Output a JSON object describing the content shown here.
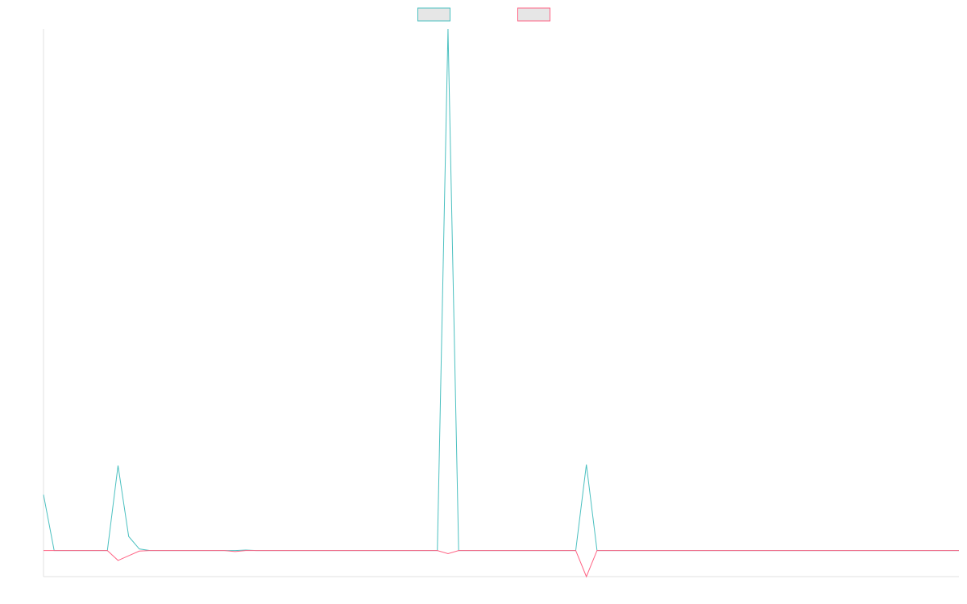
{
  "chart_data": {
    "type": "line",
    "title": "",
    "xlabel": "",
    "ylabel": "",
    "grid": false,
    "legend_position": "top-center",
    "x": [
      0,
      1,
      2,
      3,
      4,
      5,
      6,
      7,
      8,
      9,
      10,
      11,
      12,
      13,
      14,
      15,
      16,
      17,
      18,
      19,
      20,
      21,
      22,
      23,
      24,
      25,
      26,
      27,
      28,
      29,
      30,
      31,
      32,
      33,
      34,
      35,
      36,
      37,
      38,
      39,
      40,
      41,
      42,
      43,
      44,
      45,
      46,
      47,
      48,
      49,
      50,
      51,
      52,
      53,
      54,
      55,
      56,
      57,
      58,
      59,
      60,
      61,
      62,
      63,
      64,
      65,
      66,
      67,
      68,
      69,
      70,
      71,
      72,
      73,
      74,
      75,
      76,
      77,
      78,
      79,
      80,
      81,
      82,
      83,
      84,
      85,
      86
    ],
    "ylim": [
      -0.05,
      1.0
    ],
    "series": [
      {
        "color": "#4bc0c0",
        "values": [
          0.107,
          0,
          0,
          0,
          0,
          0,
          0,
          0.163,
          0.027,
          0.003,
          0,
          0,
          0,
          0,
          0,
          0,
          0,
          0,
          0,
          0.001,
          0,
          0,
          0,
          0,
          0,
          0,
          0,
          0,
          0,
          0,
          0,
          0,
          0,
          0,
          0,
          0,
          0,
          0,
          1.0,
          0,
          0,
          0,
          0,
          0,
          0,
          0,
          0,
          0,
          0,
          0,
          0,
          0.165,
          0,
          0,
          0,
          0,
          0,
          0,
          0,
          0,
          0,
          0,
          0,
          0,
          0,
          0,
          0,
          0,
          0,
          0,
          0,
          0,
          0,
          0,
          0,
          0,
          0,
          0,
          0,
          0,
          0,
          0,
          0,
          0,
          0,
          0,
          0
        ]
      },
      {
        "color": "#ff6384",
        "values": [
          0,
          0,
          0,
          0,
          0,
          0,
          0,
          -0.019,
          -0.01,
          -0.001,
          0,
          0,
          0,
          0,
          0,
          0,
          0,
          0,
          -0.002,
          0,
          0,
          0,
          0,
          0,
          0,
          0,
          0,
          0,
          0,
          0,
          0,
          0,
          0,
          0,
          0,
          0,
          0,
          0,
          -0.006,
          0,
          0,
          0,
          0,
          0,
          0,
          0,
          0,
          0,
          0,
          0,
          0,
          -0.05,
          0,
          0,
          0,
          0,
          0,
          0,
          0,
          0,
          0,
          0,
          0,
          0,
          0,
          0,
          0,
          0,
          0,
          0,
          0,
          0,
          0,
          0,
          0,
          0,
          0,
          0,
          0,
          0,
          0,
          0,
          0,
          0,
          0,
          0,
          0
        ]
      }
    ]
  }
}
